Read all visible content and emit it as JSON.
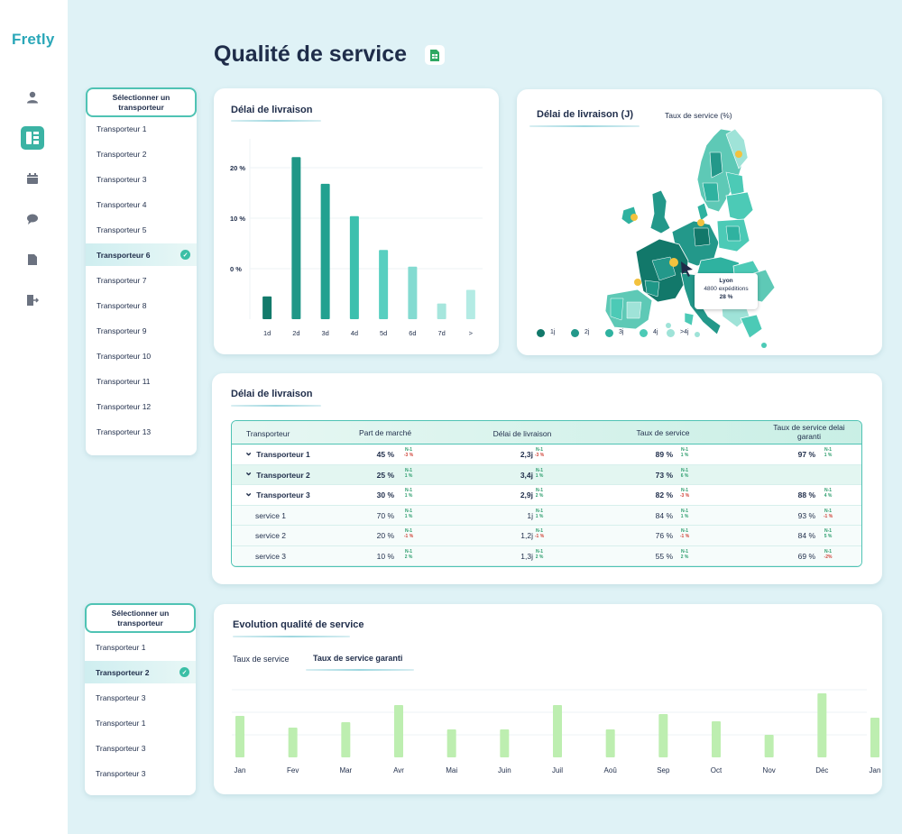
{
  "app": {
    "logo": "Fretly"
  },
  "sidebar": {
    "icons": [
      "user-icon",
      "dashboard-icon",
      "calendar-icon",
      "chat-icon",
      "document-icon",
      "logout-icon"
    ]
  },
  "page": {
    "title": "Qualité de service"
  },
  "selector_top": {
    "header": "Sélectionner un transporteur",
    "items": [
      "Transporteur 1",
      "Transporteur 2",
      "Transporteur 3",
      "Transporteur 4",
      "Transporteur 5",
      "Transporteur 6",
      "Transporteur 7",
      "Transporteur 8",
      "Transporteur 9",
      "Transporteur 10",
      "Transporteur 11",
      "Transporteur 12",
      "Transporteur 13"
    ],
    "selected_index": 5
  },
  "selector_bottom": {
    "header": "Sélectionner un transporteur",
    "items": [
      "Transporteur 1",
      "Transporteur 2",
      "Transporteur 3",
      "Transporteur 1",
      "Transporteur 3",
      "Transporteur 3"
    ],
    "selected_index": 1
  },
  "delay_chart": {
    "title": "Délai de livraison",
    "yticks": [
      "20 %",
      "10 %",
      "0 %"
    ]
  },
  "map_card": {
    "title": "Délai de livraison (J)",
    "tab2": "Taux de service (%)",
    "tooltip": {
      "city": "Lyon",
      "line1": "4800 expéditions",
      "line2": "28 %"
    },
    "legend": [
      {
        "label": "1j",
        "color": "#12786a"
      },
      {
        "label": "2j",
        "color": "#23988a"
      },
      {
        "label": "3j",
        "color": "#2fb2a0"
      },
      {
        "label": "4j",
        "color": "#4ccab6"
      },
      {
        "label": ">4j",
        "color": "#9fe3d8"
      }
    ]
  },
  "table_card": {
    "title": "Délai de livraison",
    "headers": [
      "Transporteur",
      "Part de marché",
      "Délai de livraison",
      "Taux de service",
      "Taux de service delai garanti"
    ],
    "n1_label": "N-1",
    "rows": [
      {
        "name": "Transporteur 1",
        "expandable": true,
        "part": "45 %",
        "part_n1": "-3 %",
        "delai": "2,3j",
        "delai_n1": "-3 %",
        "taux": "89 %",
        "taux_n1": "1 %",
        "garanti": "97 %",
        "garanti_n1": "1 %"
      },
      {
        "name": "Transporteur 2",
        "expandable": true,
        "part": "25 %",
        "part_n1": "1 %",
        "delai": "3,4j",
        "delai_n1": "1 %",
        "taux": "73 %",
        "taux_n1": "6 %",
        "garanti": "",
        "garanti_n1": ""
      },
      {
        "name": "Transporteur 3",
        "expandable": true,
        "part": "30 %",
        "part_n1": "1 %",
        "delai": "2,9j",
        "delai_n1": "2 %",
        "taux": "82 %",
        "taux_n1": "-3 %",
        "garanti": "88 %",
        "garanti_n1": "4 %"
      },
      {
        "name": "service 1",
        "expandable": false,
        "part": "70 %",
        "part_n1": "1 %",
        "delai": "1j",
        "delai_n1": "1 %",
        "taux": "84 %",
        "taux_n1": "1 %",
        "garanti": "93 %",
        "garanti_n1": "-1 %"
      },
      {
        "name": "service 2",
        "expandable": false,
        "part": "20 %",
        "part_n1": "-1 %",
        "delai": "1,2j",
        "delai_n1": "-1 %",
        "taux": "76 %",
        "taux_n1": "-1 %",
        "garanti": "84 %",
        "garanti_n1": "5 %"
      },
      {
        "name": "service 3",
        "expandable": false,
        "part": "10 %",
        "part_n1": "2 %",
        "delai": "1,3j",
        "delai_n1": "2 %",
        "taux": "55 %",
        "taux_n1": "2 %",
        "garanti": "69 %",
        "garanti_n1": "-2%"
      }
    ]
  },
  "evolution_card": {
    "title": "Evolution qualité de service",
    "tab1": "Taux de service",
    "tab2": "Taux de service garanti"
  },
  "chart_data": [
    {
      "type": "bar",
      "title": "Délai de livraison",
      "categories": [
        "1d",
        "2d",
        "3d",
        "4d",
        "5d",
        "6d",
        "7d",
        ">"
      ],
      "values": [
        -5.5,
        22.1,
        16.8,
        10.4,
        3.7,
        0.4,
        -6.9,
        -4.2
      ],
      "colors": [
        "#137a6b",
        "#1f9787",
        "#22a190",
        "#3cc0ae",
        "#57cfc0",
        "#84dbd1",
        "#a6e6dd",
        "#b4ebe4"
      ],
      "ylim": [
        -10,
        25
      ],
      "yticks": [
        0,
        10,
        20
      ],
      "xlabel": "",
      "ylabel": ""
    },
    {
      "type": "bar",
      "title": "Evolution qualité de service",
      "categories": [
        "Jan",
        "Fev",
        "Mar",
        "Avr",
        "Mai",
        "Juin",
        "Juil",
        "Aoû",
        "Sep",
        "Oct",
        "Nov",
        "Déc",
        "Jan"
      ],
      "values": [
        46,
        33,
        39,
        58,
        31,
        31,
        58,
        31,
        48,
        40,
        25,
        71,
        44
      ],
      "ylim": [
        0,
        80
      ],
      "color": "#bdeeb0"
    }
  ]
}
